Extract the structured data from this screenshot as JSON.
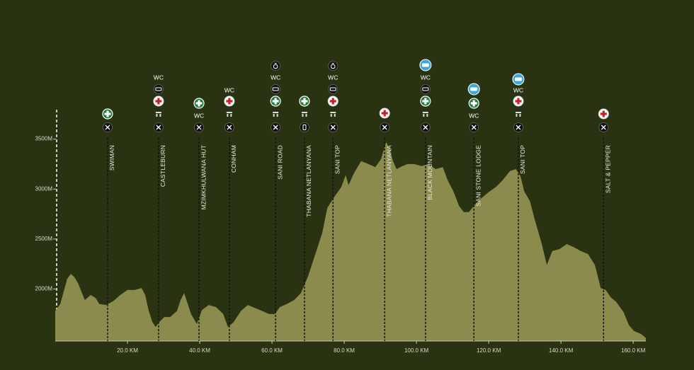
{
  "chart_data": {
    "type": "area",
    "color": "#8a8b4d",
    "x": [
      0,
      1.4,
      3.3,
      4.3,
      5.3,
      6.3,
      8.2,
      9.8,
      11.2,
      12.2,
      14.1,
      16.1,
      18.0,
      20.0,
      22.0,
      23.9,
      24.9,
      25.9,
      26.9,
      27.8,
      28.8,
      30.2,
      31.8,
      33.7,
      34.7,
      35.7,
      36.7,
      37.6,
      39.2,
      40.6,
      42.5,
      44.5,
      46.5,
      47.8,
      49.4,
      51.4,
      53.3,
      55.3,
      57.3,
      59.2,
      60.8,
      62.2,
      64.1,
      66.1,
      68.0,
      70.0,
      72.0,
      73.9,
      75.3,
      76.5,
      77.8,
      79.2,
      80.4,
      81.2,
      82.7,
      84.7,
      86.7,
      88.6,
      90.2,
      91.6,
      92.5,
      93.5,
      94.5,
      96.1,
      97.5,
      99.4,
      101.4,
      103.3,
      105.3,
      107.3,
      108.6,
      110.2,
      111.8,
      113.1,
      114.5,
      116.1,
      118.0,
      120.0,
      122.0,
      123.9,
      125.9,
      127.5,
      128.8,
      129.8,
      131.4,
      132.7,
      134.7,
      136.1,
      137.6,
      139.6,
      141.6,
      143.5,
      145.5,
      147.5,
      149.4,
      151.0,
      152.4,
      153.7,
      155.3,
      157.3,
      158.8,
      160.2,
      162.2,
      163.5
    ],
    "values": [
      1780,
      1850,
      2100,
      2150,
      2120,
      2060,
      1890,
      1940,
      1910,
      1850,
      1840,
      1880,
      1940,
      1990,
      1990,
      2010,
      1940,
      1780,
      1670,
      1620,
      1670,
      1720,
      1720,
      1780,
      1890,
      1960,
      1850,
      1750,
      1650,
      1790,
      1840,
      1820,
      1750,
      1620,
      1670,
      1780,
      1840,
      1810,
      1780,
      1750,
      1750,
      1820,
      1850,
      1890,
      1960,
      2130,
      2350,
      2560,
      2810,
      2880,
      2950,
      3020,
      3140,
      3040,
      3160,
      3280,
      3250,
      3220,
      3300,
      3470,
      3410,
      3280,
      3200,
      3230,
      3250,
      3250,
      3230,
      3250,
      3200,
      3220,
      3090,
      2980,
      2830,
      2770,
      2770,
      2840,
      2910,
      2970,
      3020,
      3090,
      3180,
      3200,
      3130,
      2980,
      2880,
      2700,
      2450,
      2240,
      2380,
      2400,
      2450,
      2420,
      2380,
      2350,
      2240,
      2010,
      1990,
      1920,
      1870,
      1770,
      1640,
      1580,
      1550,
      1510
    ],
    "xlim": [
      0,
      163.5
    ],
    "ylim": [
      1480,
      3830
    ],
    "xticks": [
      {
        "value": 20,
        "label": "20.0 KM"
      },
      {
        "value": 40,
        "label": "40.0 KM"
      },
      {
        "value": 60,
        "label": "60.0 KM"
      },
      {
        "value": 80,
        "label": "80.0 KM"
      },
      {
        "value": 100,
        "label": "100.0 KM"
      },
      {
        "value": 120,
        "label": "120.0 KM"
      },
      {
        "value": 140,
        "label": "140.0 KM"
      },
      {
        "value": 160,
        "label": "160.0 KM"
      }
    ],
    "yticks": [
      {
        "value": 2000,
        "label": "2000M"
      },
      {
        "value": 2500,
        "label": "2500M"
      },
      {
        "value": 3000,
        "label": "3000M"
      },
      {
        "value": 3500,
        "label": "3500M"
      }
    ],
    "markers": [
      {
        "x": 14.5,
        "label": "SWIMAN"
      },
      {
        "x": 28.6,
        "label": "CASTLEBURN",
        "wc": "WC"
      },
      {
        "x": 39.8,
        "label": "MZIMKHULWANA HUT",
        "wc": "WC"
      },
      {
        "x": 48.2,
        "label": "CONHAM",
        "wc": "WC"
      },
      {
        "x": 61.0,
        "label": "SANI ROAD",
        "wc": "WC"
      },
      {
        "x": 69.0,
        "label": "THABANA NETLANYANA"
      },
      {
        "x": 76.9,
        "label": "SANI TOP",
        "wc": "WC"
      },
      {
        "x": 91.2,
        "label": "THABANA NETLANYANA"
      },
      {
        "x": 102.5,
        "label": "BLACK MOUNTAIN",
        "wc": "WC"
      },
      {
        "x": 115.9,
        "label": "SANI STONE LODGE",
        "wc": "WC"
      },
      {
        "x": 128.2,
        "label": "SANI TOP",
        "wc": "WC"
      },
      {
        "x": 151.8,
        "label": "SALT & PEPPER"
      }
    ]
  }
}
